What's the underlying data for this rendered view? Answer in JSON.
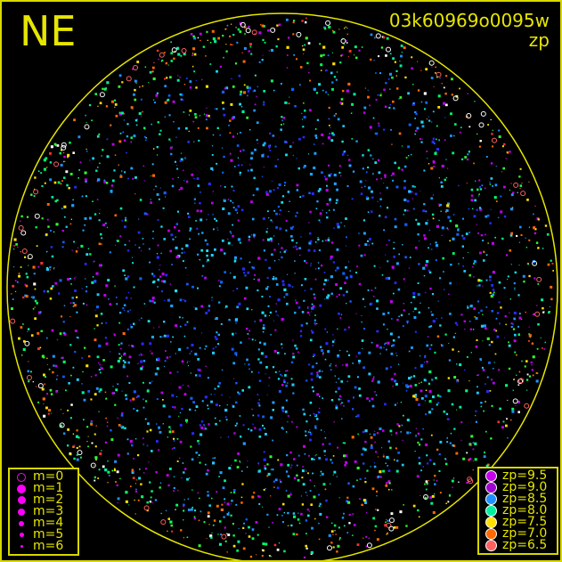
{
  "header": {
    "direction": "NE",
    "frame_id": "03k60969o0095w",
    "color_key": "zp"
  },
  "chart_data": {
    "type": "scatter",
    "title": "03k60969o0095w",
    "color_by": "zp",
    "horizon_circle_color": "#e6e600",
    "magnitude_legend": [
      {
        "label": "m=0",
        "style": "ring"
      },
      {
        "label": "m=1"
      },
      {
        "label": "m=2"
      },
      {
        "label": "m=3"
      },
      {
        "label": "m=4"
      },
      {
        "label": "m=5"
      },
      {
        "label": "m=6"
      }
    ],
    "magnitude_marker_color": "#ff00ff",
    "zp_legend": [
      {
        "label": "zp=9.5",
        "color": "#c800f0"
      },
      {
        "label": "zp=9.0",
        "color": "#a000d0"
      },
      {
        "label": "zp=8.5",
        "color": "#1e90ff"
      },
      {
        "label": "zp=8.0",
        "color": "#00f0a0"
      },
      {
        "label": "zp=7.5",
        "color": "#ffe000"
      },
      {
        "label": "zp=7.0",
        "color": "#ff6a00"
      },
      {
        "label": "zp=6.5",
        "color": "#ff6060"
      }
    ]
  }
}
